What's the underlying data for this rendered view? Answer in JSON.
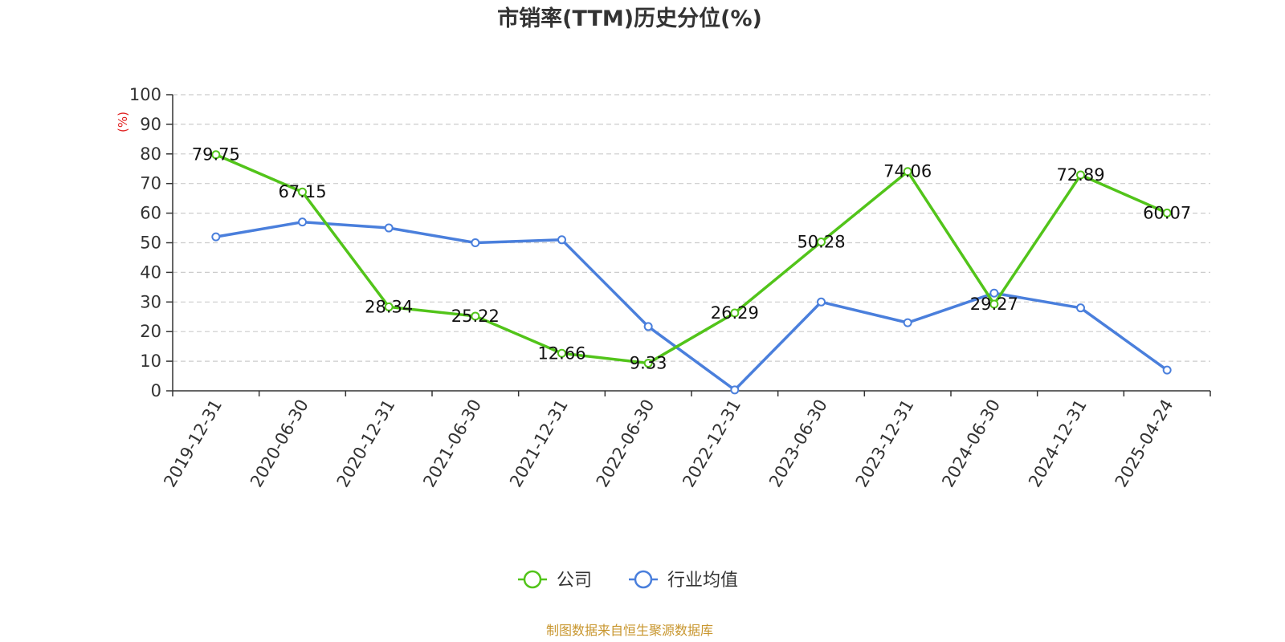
{
  "chart_data": {
    "type": "line",
    "title": "市销率(TTM)历史分位(%)",
    "ylabel": "(%)",
    "xlabel": "",
    "ylim": [
      0,
      100
    ],
    "yticks": [
      0,
      10,
      20,
      30,
      40,
      50,
      60,
      70,
      80,
      90,
      100
    ],
    "categories": [
      "2019-12-31",
      "2020-06-30",
      "2020-12-31",
      "2021-06-30",
      "2021-12-31",
      "2022-06-30",
      "2022-12-31",
      "2023-06-30",
      "2023-12-31",
      "2024-06-30",
      "2024-12-31",
      "2025-04-24"
    ],
    "series": [
      {
        "name": "公司",
        "color": "#52c41a",
        "show_labels": true,
        "values": [
          79.75,
          67.15,
          28.34,
          25.22,
          12.66,
          9.33,
          26.29,
          50.28,
          74.06,
          29.27,
          72.89,
          60.07
        ]
      },
      {
        "name": "行业均值",
        "color": "#4a7fdc",
        "show_labels": false,
        "values": [
          52.0,
          57.0,
          55.0,
          50.0,
          51.0,
          21.7,
          0.3,
          30.0,
          23.0,
          33.0,
          28.0,
          7.0
        ]
      }
    ],
    "grid": true,
    "legend_position": "bottom-center",
    "ylabel_color": "#e02020"
  },
  "source_text": "制图数据来自恒生聚源数据库",
  "source_color": "#c8962e"
}
